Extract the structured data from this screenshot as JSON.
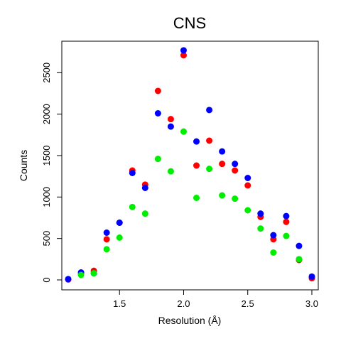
{
  "chart_data": {
    "type": "scatter",
    "title": "CNS",
    "xlabel": "Resolution (Å)",
    "ylabel": "Counts",
    "xlim": [
      1.05,
      3.05
    ],
    "ylim": [
      -120,
      2880
    ],
    "x_ticks": [
      1.5,
      2.0,
      2.5,
      3.0
    ],
    "x_tick_labels": [
      "1.5",
      "2.0",
      "2.5",
      "3.0"
    ],
    "y_ticks": [
      0,
      500,
      1000,
      1500,
      2000,
      2500
    ],
    "y_tick_labels": [
      "0",
      "500",
      "1000",
      "1500",
      "2000",
      "2500"
    ],
    "grid": false,
    "legend": "none",
    "series": [
      {
        "color": "#ff0000",
        "x": [
          1.1,
          1.2,
          1.3,
          1.4,
          1.5,
          1.6,
          1.7,
          1.8,
          1.9,
          2.0,
          2.1,
          2.2,
          2.3,
          2.4,
          2.5,
          2.6,
          2.7,
          2.8,
          2.9,
          3.0
        ],
        "y": [
          5,
          70,
          110,
          490,
          690,
          1320,
          1150,
          2280,
          1940,
          2710,
          1380,
          1680,
          1400,
          1320,
          1140,
          760,
          490,
          700,
          240,
          20
        ]
      },
      {
        "color": "#0000ff",
        "x": [
          1.1,
          1.2,
          1.3,
          1.4,
          1.5,
          1.6,
          1.7,
          1.8,
          1.9,
          2.0,
          2.1,
          2.2,
          2.3,
          2.4,
          2.5,
          2.6,
          2.7,
          2.8,
          2.9,
          3.0
        ],
        "y": [
          10,
          90,
          80,
          570,
          690,
          1290,
          1110,
          2010,
          1850,
          2770,
          1670,
          2050,
          1550,
          1400,
          1230,
          800,
          540,
          770,
          410,
          40
        ]
      },
      {
        "color": "#00ee00",
        "x": [
          1.2,
          1.3,
          1.4,
          1.5,
          1.6,
          1.7,
          1.8,
          1.9,
          2.0,
          2.1,
          2.2,
          2.3,
          2.4,
          2.5,
          2.6,
          2.7,
          2.8,
          2.9
        ],
        "y": [
          60,
          80,
          370,
          510,
          880,
          800,
          1460,
          1310,
          1790,
          990,
          1340,
          1020,
          980,
          840,
          620,
          330,
          530,
          250
        ]
      }
    ]
  }
}
